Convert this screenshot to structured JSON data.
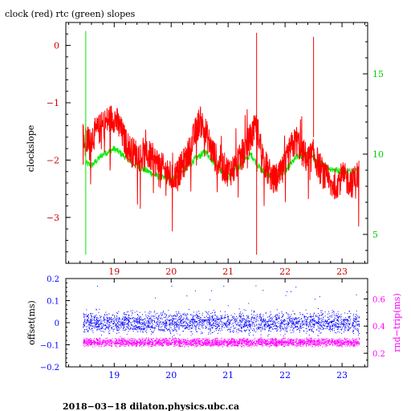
{
  "colors": {
    "clock": "#ff0000",
    "rtc": "#00ee00",
    "offset": "#0000ff",
    "rndtrip": "#ff00ff",
    "axis_primary": "#cc0000",
    "axis_secondary": "#00cc00",
    "frame": "#000000"
  },
  "chart_data": [
    {
      "type": "line",
      "title": "clock (red) rtc (green) slopes",
      "ylabel": "clockslope",
      "x_ticks": [
        "19",
        "20",
        "21",
        "22",
        "23"
      ],
      "x_range": [
        18.15,
        23.45
      ],
      "ylim": [
        -3.8,
        0.4
      ],
      "y_ticks": [
        "0",
        "−1",
        "−2",
        "−3"
      ],
      "y2_ticks": [
        "15",
        "10",
        "5"
      ],
      "y2lim": [
        3.2,
        18.2
      ],
      "grid": false,
      "series": [
        {
          "x": [
            18.45,
            18.5,
            18.6,
            18.7,
            18.8,
            18.9,
            19.0,
            19.1,
            19.2,
            19.3,
            19.4,
            19.5,
            19.6,
            19.7,
            19.8,
            19.9,
            20.0,
            20.1,
            20.2,
            20.3,
            20.4,
            20.5,
            20.6,
            20.7,
            20.8,
            20.9,
            21.0,
            21.1,
            21.2,
            21.3,
            21.4,
            21.5,
            21.6,
            21.7,
            21.8,
            21.9,
            22.0,
            22.1,
            22.2,
            22.3,
            22.4,
            22.5,
            22.6,
            22.7,
            22.8,
            22.9,
            23.0,
            23.1,
            23.2,
            23.3
          ],
          "values": [
            -1.6,
            -1.7,
            -1.6,
            -1.5,
            -1.4,
            -1.3,
            -1.25,
            -1.45,
            -1.7,
            -1.85,
            -1.9,
            -1.95,
            -1.9,
            -2.0,
            -2.1,
            -2.2,
            -2.3,
            -2.25,
            -2.1,
            -1.9,
            -1.6,
            -1.3,
            -1.5,
            -1.8,
            -2.0,
            -2.1,
            -2.2,
            -2.15,
            -2.0,
            -1.8,
            -1.6,
            -1.4,
            -1.9,
            -2.2,
            -2.35,
            -2.3,
            -2.1,
            -1.8,
            -1.65,
            -1.85,
            -2.0,
            -1.9,
            -2.1,
            -2.3,
            -2.45,
            -2.4,
            -2.3,
            -2.35,
            -2.4,
            -2.2
          ]
        },
        {
          "x": [
            18.5,
            18.6,
            18.8,
            19.0,
            19.2,
            19.4,
            19.6,
            19.8,
            20.0,
            20.2,
            20.4,
            20.6,
            20.8,
            21.0,
            21.2,
            21.4,
            21.6,
            21.8,
            22.0,
            22.2,
            22.4,
            22.6,
            22.8,
            23.0,
            23.2,
            23.3
          ],
          "values": [
            -2.05,
            -2.1,
            -1.9,
            -1.8,
            -1.95,
            -2.1,
            -2.2,
            -2.3,
            -2.35,
            -2.2,
            -2.0,
            -1.85,
            -2.1,
            -2.3,
            -2.1,
            -1.9,
            -2.2,
            -2.3,
            -2.2,
            -1.95,
            -1.9,
            -2.05,
            -2.15,
            -2.2,
            -2.2,
            -2.15
          ]
        }
      ],
      "spikes": [
        {
          "x": 18.5,
          "values": [
            -3.65,
            0.25
          ]
        },
        {
          "x": 21.5,
          "values": [
            -3.65,
            0.22
          ]
        },
        {
          "x": 22.5,
          "values": [
            -1.6,
            0.15
          ]
        }
      ]
    },
    {
      "type": "scatter",
      "ylabel": "offset(ms)",
      "y2label": "rnd−trip(ms)",
      "x_ticks": [
        "19",
        "20",
        "21",
        "22",
        "23"
      ],
      "x_range": [
        18.15,
        23.45
      ],
      "ylim": [
        -0.2,
        0.2
      ],
      "y_ticks": [
        "0.2",
        "0.1",
        "0",
        "−0.1",
        "−0.2"
      ],
      "y2lim": [
        0.1,
        0.75
      ],
      "y2_ticks": [
        "0.6",
        "0.4",
        "0.2"
      ],
      "x_span": [
        18.45,
        23.3
      ],
      "series": [
        {
          "band_center": 0.0,
          "band_spread": 0.045,
          "outlier_max": 0.17
        },
        {
          "band_center": 0.28,
          "band_spread": 0.035,
          "outlier_max": 0.35
        }
      ]
    }
  ],
  "footer": "2018−03−18  dilaton.physics.ubc.ca"
}
